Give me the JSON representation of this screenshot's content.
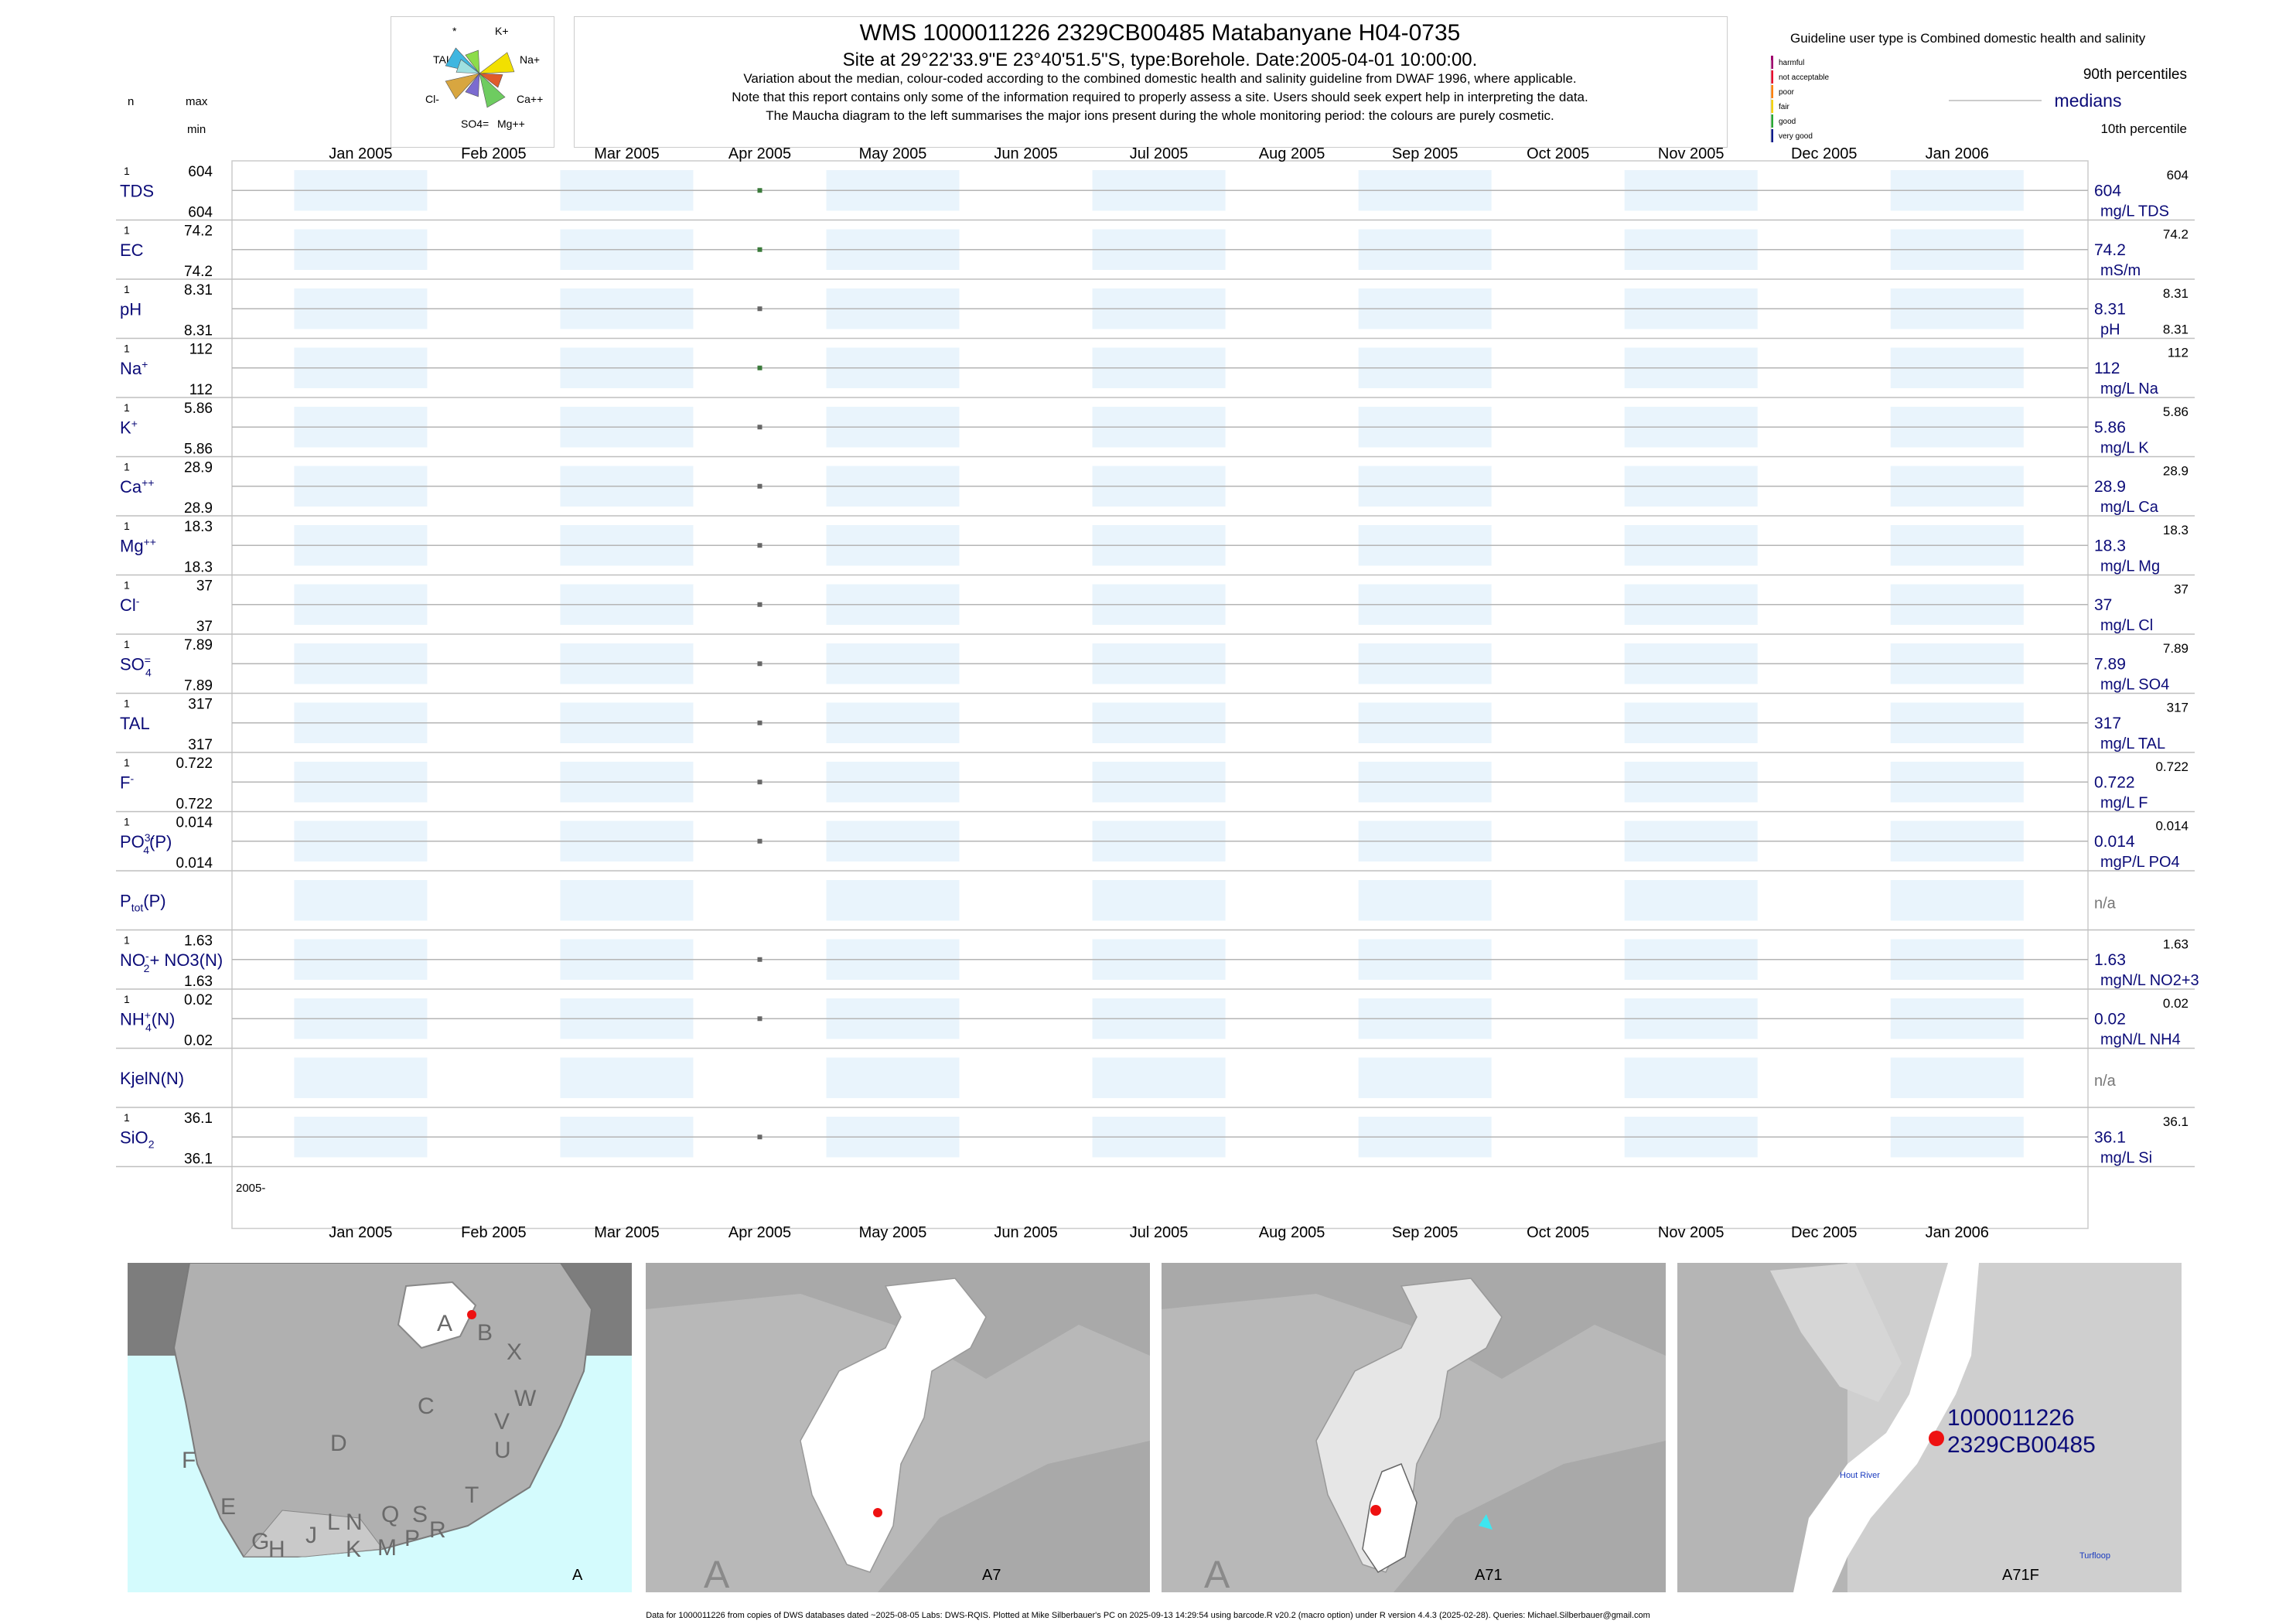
{
  "header": {
    "title": "WMS 1000011226 2329CB00485 Matabanyane H04-0735",
    "subtitle": "Site at 29°22'33.9\"E 23°40'51.5\"S, type:Borehole. Date:2005-04-01 10:00:00.",
    "notes": [
      "Variation about the median,  colour-coded according to the combined domestic health and salinity guideline from DWAF 1996, where applicable.",
      "Note that this report contains only some of the information required to properly assess a site. Users should seek expert help in interpreting the data.",
      "The Maucha diagram to the left summarises the major ions present during the whole monitoring period: the colours are purely cosmetic."
    ]
  },
  "maucha": {
    "labels": [
      "*",
      "K+",
      "TAL",
      "Na+",
      "Cl-",
      "Ca++",
      "SO4=",
      "Mg++"
    ]
  },
  "column_heads": {
    "n": "n",
    "max": "max",
    "min": "min"
  },
  "legend": {
    "guideline_text": "Guideline user type is Combined domestic health and salinity",
    "classes": [
      {
        "label": "harmful",
        "color": "#a0006e"
      },
      {
        "label": "not acceptable",
        "color": "#e8002c"
      },
      {
        "label": "poor",
        "color": "#ff8000"
      },
      {
        "label": "fair",
        "color": "#f5d300"
      },
      {
        "label": "good",
        "color": "#27a833"
      },
      {
        "label": "very good",
        "color": "#0a1a8c"
      }
    ],
    "p90": "90th percentiles",
    "medians": "medians",
    "p10": "10th percentile"
  },
  "chart_data": {
    "type": "scatter",
    "x_months": [
      "Jan 2005",
      "Feb 2005",
      "Mar 2005",
      "Apr 2005",
      "May 2005",
      "Jun 2005",
      "Jul 2005",
      "Aug 2005",
      "Sep 2005",
      "Oct 2005",
      "Nov 2005",
      "Dec 2005",
      "Jan 2006"
    ],
    "x_range": [
      "2004-12-02",
      "2006-01-31"
    ],
    "sample_date": "2005-04-01",
    "year_label": "2005-",
    "series": [
      {
        "label": "TDS",
        "sup": "",
        "sub": "",
        "after": "",
        "n": "1",
        "max": "604",
        "min": "604",
        "median": "604",
        "unit": "mg/L TDS",
        "p90": "604",
        "p10": "",
        "color": "#3a7a3a"
      },
      {
        "label": "EC",
        "sup": "",
        "sub": "",
        "after": "",
        "n": "1",
        "max": "74.2",
        "min": "74.2",
        "median": "74.2",
        "unit": "mS/m",
        "p90": "74.2",
        "p10": "",
        "color": "#3a7a3a"
      },
      {
        "label": "pH",
        "sup": "",
        "sub": "",
        "after": "",
        "n": "1",
        "max": "8.31",
        "min": "8.31",
        "median": "8.31",
        "unit": "pH",
        "p90": "8.31",
        "p10": "8.31",
        "color": "#666666"
      },
      {
        "label": "Na",
        "sup": "+",
        "sub": "",
        "after": "",
        "n": "1",
        "max": "112",
        "min": "112",
        "median": "112",
        "unit": "mg/L Na",
        "p90": "112",
        "p10": "",
        "color": "#3a7a3a"
      },
      {
        "label": "K",
        "sup": "+",
        "sub": "",
        "after": "",
        "n": "1",
        "max": "5.86",
        "min": "5.86",
        "median": "5.86",
        "unit": "mg/L K",
        "p90": "5.86",
        "p10": "",
        "color": "#666666"
      },
      {
        "label": "Ca",
        "sup": "++",
        "sub": "",
        "after": "",
        "n": "1",
        "max": "28.9",
        "min": "28.9",
        "median": "28.9",
        "unit": "mg/L Ca",
        "p90": "28.9",
        "p10": "",
        "color": "#666666"
      },
      {
        "label": "Mg",
        "sup": "++",
        "sub": "",
        "after": "",
        "n": "1",
        "max": "18.3",
        "min": "18.3",
        "median": "18.3",
        "unit": "mg/L Mg",
        "p90": "18.3",
        "p10": "",
        "color": "#666666"
      },
      {
        "label": "Cl",
        "sup": "-",
        "sub": "",
        "after": "",
        "n": "1",
        "max": "37",
        "min": "37",
        "median": "37",
        "unit": "mg/L Cl",
        "p90": "37",
        "p10": "",
        "color": "#666666"
      },
      {
        "label": "SO",
        "sup": "=",
        "sub": "4",
        "after": "",
        "n": "1",
        "max": "7.89",
        "min": "7.89",
        "median": "7.89",
        "unit": "mg/L SO4",
        "p90": "7.89",
        "p10": "",
        "color": "#666666"
      },
      {
        "label": "TAL",
        "sup": "",
        "sub": "",
        "after": "",
        "n": "1",
        "max": "317",
        "min": "317",
        "median": "317",
        "unit": "mg/L TAL",
        "p90": "317",
        "p10": "",
        "color": "#666666"
      },
      {
        "label": "F",
        "sup": "-",
        "sub": "",
        "after": "",
        "n": "1",
        "max": "0.722",
        "min": "0.722",
        "median": "0.722",
        "unit": "mg/L F",
        "p90": "0.722",
        "p10": "",
        "color": "#666666"
      },
      {
        "label": "PO",
        "sup": "3-",
        "sub": "4",
        "after": "(P)",
        "n": "1",
        "max": "0.014",
        "min": "0.014",
        "median": "0.014",
        "unit": "mgP/L PO4",
        "p90": "0.014",
        "p10": "",
        "color": "#666666"
      },
      {
        "label": "P",
        "sup": "",
        "sub": "tot",
        "after": "(P)",
        "n": "",
        "max": "",
        "min": "",
        "median": "n/a",
        "unit": "",
        "p90": "",
        "p10": "",
        "color": ""
      },
      {
        "label": "NO",
        "sup": "-",
        "sub": "2",
        "after": "+ NO3(N)",
        "n": "1",
        "max": "1.63",
        "min": "1.63",
        "median": "1.63",
        "unit": "mgN/L NO2+3",
        "p90": "1.63",
        "p10": "",
        "color": "#666666"
      },
      {
        "label": "NH",
        "sup": "+",
        "sub": "4",
        "after": "(N)",
        "n": "1",
        "max": "0.02",
        "min": "0.02",
        "median": "0.02",
        "unit": "mgN/L NH4",
        "p90": "0.02",
        "p10": "",
        "color": "#666666"
      },
      {
        "label": "KjelN(N)",
        "sup": "",
        "sub": "",
        "after": "",
        "n": "",
        "max": "",
        "min": "",
        "median": "n/a",
        "unit": "",
        "p90": "",
        "p10": "",
        "color": ""
      },
      {
        "label": "SiO",
        "sup": "",
        "sub": "2",
        "after": "",
        "n": "1",
        "max": "36.1",
        "min": "36.1",
        "median": "36.1",
        "unit": "mg/L Si",
        "p90": "36.1",
        "p10": "",
        "color": "#666666"
      }
    ]
  },
  "maps": [
    {
      "caption": "A",
      "letters": [
        "A",
        "B",
        "X",
        "C",
        "W",
        "D",
        "V",
        "U",
        "F",
        "T",
        "E",
        "L",
        "N",
        "Q",
        "S",
        "J",
        "R",
        "G",
        "H",
        "K",
        "M",
        "P"
      ]
    },
    {
      "caption": "A7",
      "corner": "A"
    },
    {
      "caption": "A71",
      "corner": "A"
    },
    {
      "caption": "A71F",
      "site_id1": "1000011226",
      "site_id2": "2329CB00485",
      "river1": "Hout River",
      "river2": "Turfloop"
    }
  ],
  "footer": "Data for 1000011226 from copies of DWS databases dated ~2025-08-05 Labs: DWS-RQIS. Plotted at Mike Silberbauer's PC on 2025-09-13 14:29:54 using barcode.R v20.2 (macro option) under R version 4.4.3 (2025-02-28). Queries: Michael.Silberbauer@gmail.com"
}
